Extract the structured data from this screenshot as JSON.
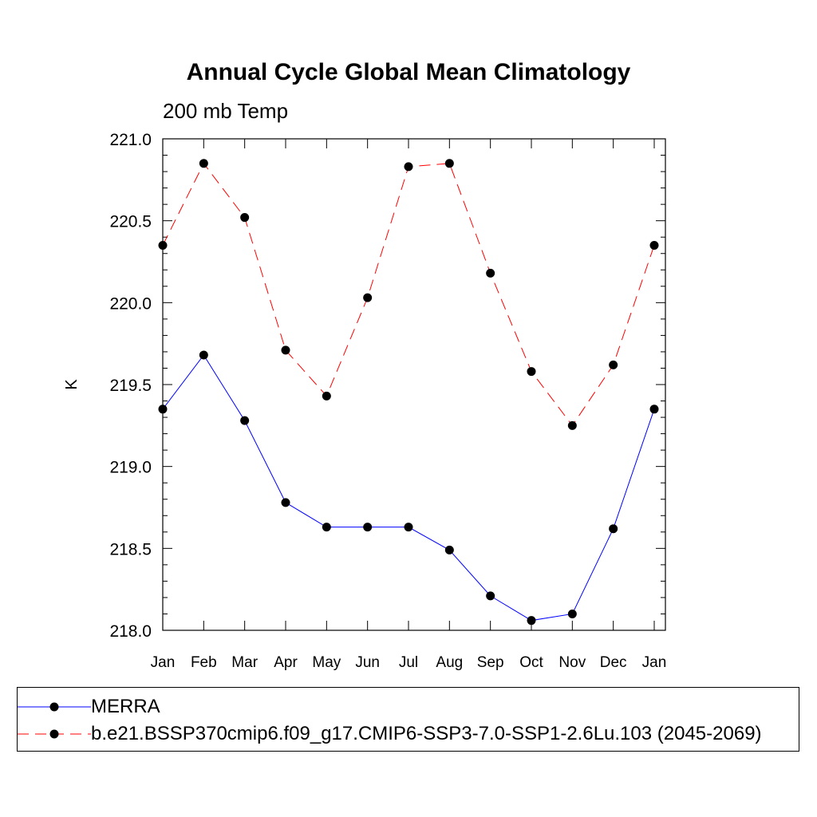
{
  "title": "Annual Cycle Global Mean Climatology",
  "subtitle": "200 mb Temp",
  "chart_data": {
    "type": "line",
    "title": "Annual Cycle Global Mean Climatology",
    "subtitle": "200 mb Temp",
    "xlabel": "",
    "ylabel": "K",
    "categories": [
      "Jan",
      "Feb",
      "Mar",
      "Apr",
      "May",
      "Jun",
      "Jul",
      "Aug",
      "Sep",
      "Oct",
      "Nov",
      "Dec",
      "Jan"
    ],
    "ylim": [
      218.0,
      221.0
    ],
    "yticks": [
      "218.0",
      "218.5",
      "219.0",
      "219.5",
      "220.0",
      "220.5",
      "221.0"
    ],
    "grid": false,
    "legend_position": "bottom",
    "series": [
      {
        "name": "MERRA",
        "color": "#0000ff",
        "line_style": "solid",
        "marker": "filled-circle",
        "values": [
          219.35,
          219.68,
          219.28,
          218.78,
          218.63,
          218.63,
          218.63,
          218.49,
          218.21,
          218.06,
          218.1,
          218.62,
          219.35
        ]
      },
      {
        "name": "b.e21.BSSP370cmip6.f09_g17.CMIP6-SSP3-7.0-SSP1-2.6Lu.103 (2045-2069)",
        "color": "#ff0000",
        "line_style": "dashed",
        "marker": "filled-circle",
        "values": [
          220.35,
          220.85,
          220.52,
          219.71,
          219.43,
          220.03,
          220.83,
          220.85,
          220.18,
          219.58,
          219.25,
          219.62,
          220.35
        ]
      }
    ]
  }
}
